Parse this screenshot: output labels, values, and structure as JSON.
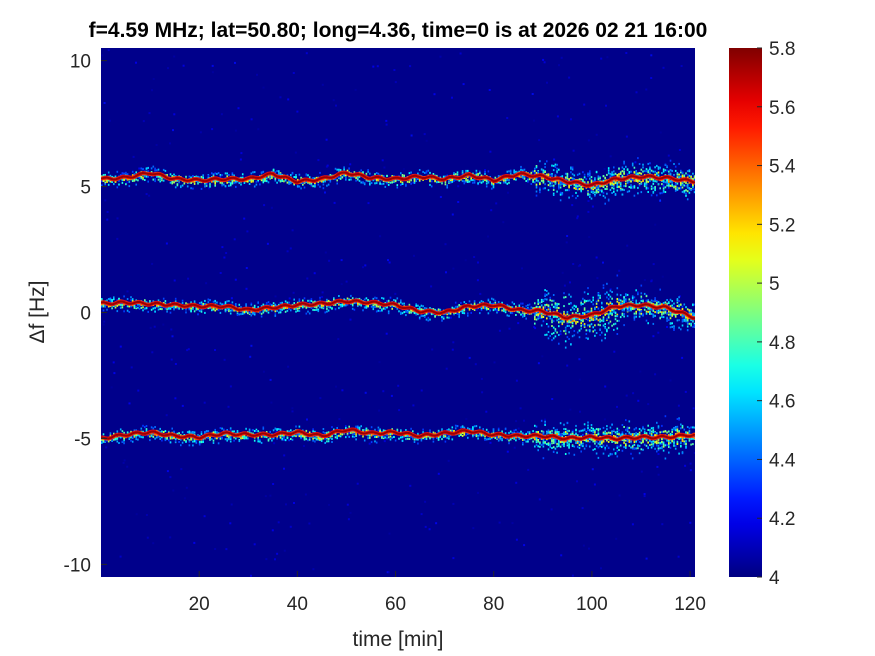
{
  "chart_data": {
    "type": "heatmap",
    "title": "f=4.59 MHz;  lat=50.80; long=4.36, time=0 is at 2026 02 21 16:00",
    "xlabel": "time [min]",
    "ylabel": "Δf [Hz]",
    "xlim": [
      0,
      121
    ],
    "ylim": [
      -10.5,
      10.5
    ],
    "xticks": [
      20,
      40,
      60,
      80,
      100,
      120
    ],
    "yticks": [
      10,
      5,
      0,
      -5,
      -10
    ],
    "colorbar": {
      "limits": [
        4,
        5.8
      ],
      "ticks": [
        5.8,
        5.6,
        5.4,
        5.2,
        5,
        4.8,
        4.6,
        4.4,
        4.2,
        4
      ],
      "colormap": "jet"
    },
    "background_level": 4.02,
    "series": [
      {
        "x": [
          0,
          5,
          10,
          15,
          20,
          25,
          30,
          35,
          40,
          45,
          50,
          55,
          60,
          65,
          70,
          75,
          80,
          85,
          90,
          95,
          100,
          105,
          110,
          115,
          121
        ],
        "y": [
          5.3,
          5.35,
          5.55,
          5.3,
          5.25,
          5.3,
          5.3,
          5.5,
          5.2,
          5.3,
          5.55,
          5.35,
          5.3,
          5.4,
          5.3,
          5.45,
          5.25,
          5.5,
          5.4,
          5.2,
          5.05,
          5.3,
          5.4,
          5.35,
          5.2
        ]
      },
      {
        "x": [
          0,
          5,
          10,
          15,
          20,
          25,
          30,
          35,
          40,
          45,
          50,
          55,
          60,
          65,
          70,
          75,
          80,
          85,
          90,
          95,
          100,
          105,
          110,
          115,
          121
        ],
        "y": [
          0.35,
          0.4,
          0.35,
          0.3,
          0.25,
          0.25,
          0.1,
          0.2,
          0.3,
          0.35,
          0.45,
          0.4,
          0.3,
          0.05,
          0.0,
          0.25,
          0.3,
          0.1,
          0.05,
          -0.2,
          -0.1,
          0.25,
          0.3,
          0.2,
          -0.2
        ]
      },
      {
        "x": [
          0,
          5,
          10,
          15,
          20,
          25,
          30,
          35,
          40,
          45,
          50,
          55,
          60,
          65,
          70,
          75,
          80,
          85,
          90,
          95,
          100,
          105,
          110,
          115,
          121
        ],
        "y": [
          -5.0,
          -4.85,
          -4.75,
          -4.9,
          -4.95,
          -4.8,
          -4.85,
          -4.85,
          -4.75,
          -4.9,
          -4.65,
          -4.8,
          -4.75,
          -4.9,
          -4.8,
          -4.7,
          -4.85,
          -4.9,
          -4.9,
          -5.0,
          -4.95,
          -5.0,
          -4.95,
          -4.95,
          -4.85
        ]
      }
    ]
  }
}
